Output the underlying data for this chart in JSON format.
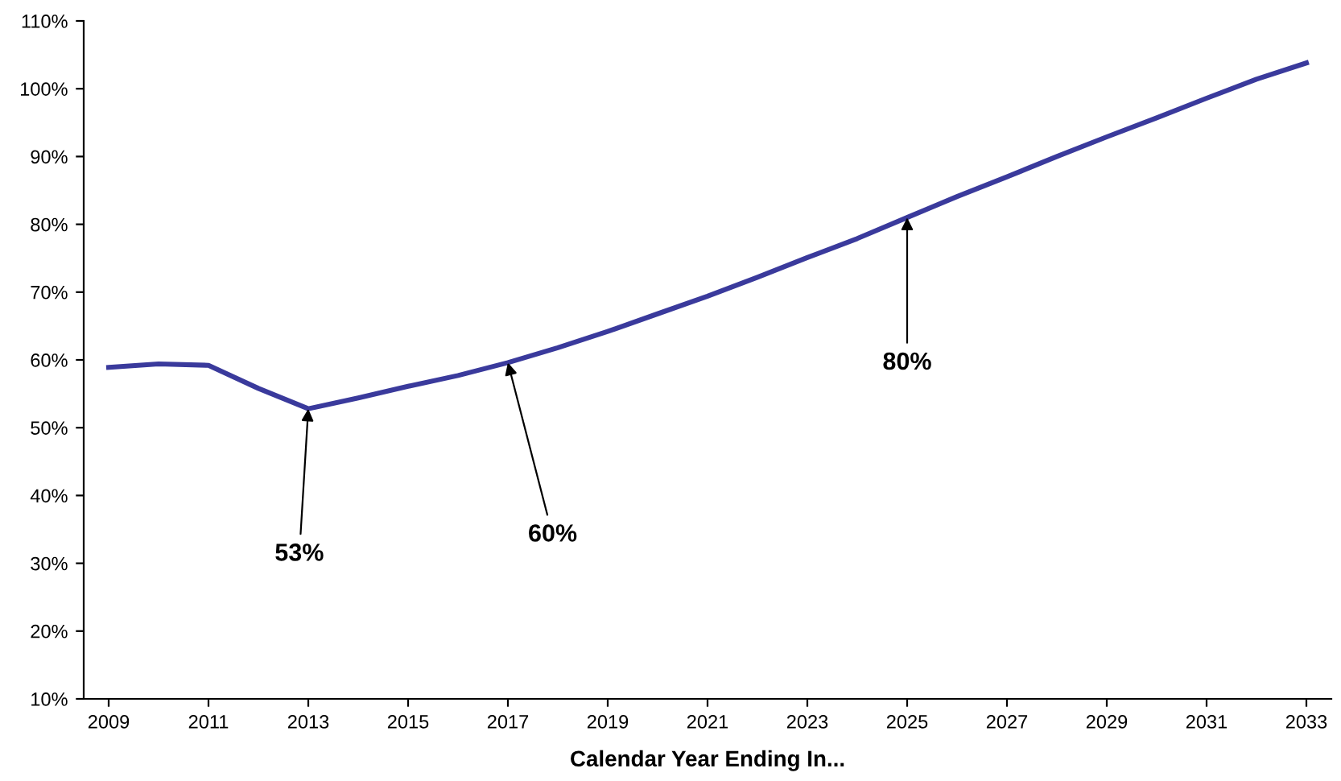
{
  "chart_data": {
    "type": "line",
    "xlabel": "Calendar Year Ending In...",
    "categories": [
      "2009",
      null,
      "2011",
      null,
      "2013",
      null,
      "2015",
      null,
      "2017",
      null,
      "2019",
      null,
      "2021",
      null,
      "2023",
      null,
      "2025",
      null,
      "2027",
      null,
      "2029",
      null,
      "2031",
      null,
      "2033"
    ],
    "series": [
      {
        "color": "#3a3a9c",
        "values": [
          58.9,
          59.4,
          59.2,
          55.8,
          52.8,
          54.4,
          56.1,
          57.7,
          59.6,
          61.8,
          64.2,
          66.8,
          69.4,
          72.2,
          75.1,
          77.9,
          81.0,
          84.1,
          87.0,
          90.0,
          92.9,
          95.7,
          98.6,
          101.4,
          103.8
        ]
      }
    ],
    "ylim": [
      10,
      110
    ],
    "yticks": [
      {
        "value": 10,
        "label": "10%"
      },
      {
        "value": 20,
        "label": "20%"
      },
      {
        "value": 30,
        "label": "30%"
      },
      {
        "value": 40,
        "label": "40%"
      },
      {
        "value": 50,
        "label": "50%"
      },
      {
        "value": 60,
        "label": "60%"
      },
      {
        "value": 70,
        "label": "70%"
      },
      {
        "value": 80,
        "label": "80%"
      },
      {
        "value": 90,
        "label": "90%"
      },
      {
        "value": 100,
        "label": "100%"
      },
      {
        "value": 110,
        "label": "110%"
      }
    ],
    "annotations": [
      {
        "text": "53%",
        "x": "2013",
        "y": 52.8
      },
      {
        "text": "60%",
        "x": "2017",
        "y": 59.6
      },
      {
        "text": "80%",
        "x": "2025",
        "y": 81.0
      }
    ],
    "grid": false,
    "legend": false,
    "marker": "none",
    "line_style": "solid"
  }
}
